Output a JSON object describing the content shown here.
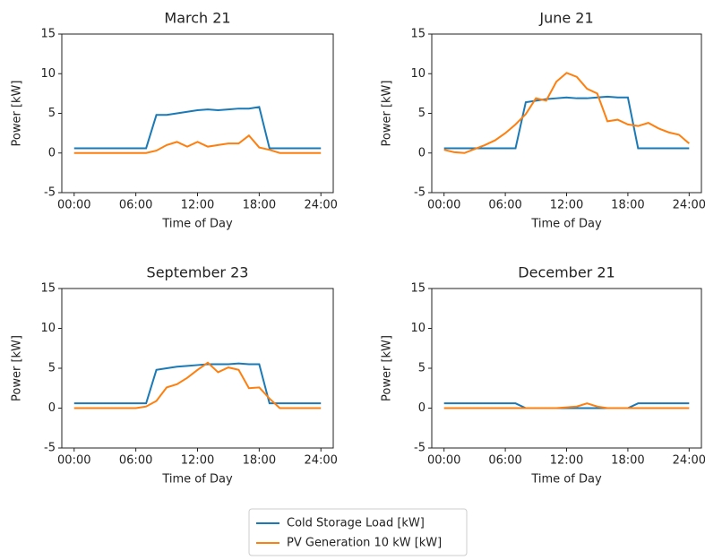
{
  "chart_data": [
    {
      "type": "line",
      "title": "March 21",
      "xlabel": "Time of Day",
      "ylabel": "Power [kW]",
      "x": [
        0,
        1,
        2,
        3,
        4,
        5,
        6,
        7,
        8,
        9,
        10,
        11,
        12,
        13,
        14,
        15,
        16,
        17,
        18,
        19,
        20,
        21,
        22,
        23,
        24
      ],
      "xlim": [
        -1.2,
        25.2
      ],
      "ylim": [
        -5,
        15
      ],
      "xticks": [
        {
          "value": 0,
          "label": "00:00"
        },
        {
          "value": 6,
          "label": "06:00"
        },
        {
          "value": 12,
          "label": "12:00"
        },
        {
          "value": 18,
          "label": "18:00"
        },
        {
          "value": 24,
          "label": "24:00"
        }
      ],
      "yticks": [
        -5,
        0,
        5,
        10,
        15
      ],
      "series": [
        {
          "name": "Cold Storage  Load [kW]",
          "color": "#1a7ab8",
          "values": [
            0.6,
            0.6,
            0.6,
            0.6,
            0.6,
            0.6,
            0.6,
            0.6,
            4.8,
            4.8,
            5.0,
            5.2,
            5.4,
            5.5,
            5.4,
            5.5,
            5.6,
            5.6,
            5.8,
            0.6,
            0.6,
            0.6,
            0.6,
            0.6,
            0.6
          ]
        },
        {
          "name": "PV Generation 10 kW [kW]",
          "color": "#ff7f0e",
          "values": [
            0,
            0,
            0,
            0,
            0,
            0,
            0,
            0,
            0.3,
            1.0,
            1.4,
            0.8,
            1.4,
            0.8,
            1.0,
            1.2,
            1.2,
            2.2,
            0.7,
            0.4,
            0,
            0,
            0,
            0,
            0
          ]
        }
      ]
    },
    {
      "type": "line",
      "title": "June 21",
      "xlabel": "Time of Day",
      "ylabel": "Power [kW]",
      "x": [
        0,
        1,
        2,
        3,
        4,
        5,
        6,
        7,
        8,
        9,
        10,
        11,
        12,
        13,
        14,
        15,
        16,
        17,
        18,
        19,
        20,
        21,
        22,
        23,
        24
      ],
      "xlim": [
        -1.2,
        25.2
      ],
      "ylim": [
        -5,
        15
      ],
      "xticks": [
        {
          "value": 0,
          "label": "00:00"
        },
        {
          "value": 6,
          "label": "06:00"
        },
        {
          "value": 12,
          "label": "12:00"
        },
        {
          "value": 18,
          "label": "18:00"
        },
        {
          "value": 24,
          "label": "24:00"
        }
      ],
      "yticks": [
        -5,
        0,
        5,
        10,
        15
      ],
      "series": [
        {
          "name": "Cold Storage  Load [kW]",
          "color": "#1a7ab8",
          "values": [
            0.6,
            0.6,
            0.6,
            0.6,
            0.6,
            0.6,
            0.6,
            0.6,
            6.4,
            6.6,
            6.8,
            6.9,
            7.0,
            6.9,
            6.9,
            7.0,
            7.1,
            7.0,
            7.0,
            0.6,
            0.6,
            0.6,
            0.6,
            0.6,
            0.6
          ]
        },
        {
          "name": "PV Generation 10 kW [kW]",
          "color": "#ff7f0e",
          "values": [
            0.4,
            0.1,
            0.0,
            0.5,
            1.0,
            1.6,
            2.5,
            3.6,
            4.9,
            6.9,
            6.6,
            9.0,
            10.1,
            9.6,
            8.1,
            7.5,
            4.0,
            4.2,
            3.6,
            3.4,
            3.8,
            3.1,
            2.6,
            2.3,
            1.2
          ]
        }
      ]
    },
    {
      "type": "line",
      "title": "September 23",
      "xlabel": "Time of Day",
      "ylabel": "Power [kW]",
      "x": [
        0,
        1,
        2,
        3,
        4,
        5,
        6,
        7,
        8,
        9,
        10,
        11,
        12,
        13,
        14,
        15,
        16,
        17,
        18,
        19,
        20,
        21,
        22,
        23,
        24
      ],
      "xlim": [
        -1.2,
        25.2
      ],
      "ylim": [
        -5,
        15
      ],
      "xticks": [
        {
          "value": 0,
          "label": "00:00"
        },
        {
          "value": 6,
          "label": "06:00"
        },
        {
          "value": 12,
          "label": "12:00"
        },
        {
          "value": 18,
          "label": "18:00"
        },
        {
          "value": 24,
          "label": "24:00"
        }
      ],
      "yticks": [
        -5,
        0,
        5,
        10,
        15
      ],
      "series": [
        {
          "name": "Cold Storage  Load [kW]",
          "color": "#1a7ab8",
          "values": [
            0.6,
            0.6,
            0.6,
            0.6,
            0.6,
            0.6,
            0.6,
            0.6,
            4.8,
            5.0,
            5.2,
            5.3,
            5.4,
            5.5,
            5.5,
            5.5,
            5.6,
            5.5,
            5.5,
            0.6,
            0.6,
            0.6,
            0.6,
            0.6,
            0.6
          ]
        },
        {
          "name": "PV Generation 10 kW [kW]",
          "color": "#ff7f0e",
          "values": [
            0,
            0,
            0,
            0,
            0,
            0,
            0,
            0.2,
            0.9,
            2.6,
            3.0,
            3.8,
            4.8,
            5.7,
            4.5,
            5.1,
            4.8,
            2.5,
            2.6,
            1.2,
            0,
            0,
            0,
            0,
            0
          ]
        }
      ]
    },
    {
      "type": "line",
      "title": "December 21",
      "xlabel": "Time of Day",
      "ylabel": "Power [kW]",
      "x": [
        0,
        1,
        2,
        3,
        4,
        5,
        6,
        7,
        8,
        9,
        10,
        11,
        12,
        13,
        14,
        15,
        16,
        17,
        18,
        19,
        20,
        21,
        22,
        23,
        24
      ],
      "xlim": [
        -1.2,
        25.2
      ],
      "ylim": [
        -5,
        15
      ],
      "xticks": [
        {
          "value": 0,
          "label": "00:00"
        },
        {
          "value": 6,
          "label": "06:00"
        },
        {
          "value": 12,
          "label": "12:00"
        },
        {
          "value": 18,
          "label": "18:00"
        },
        {
          "value": 24,
          "label": "24:00"
        }
      ],
      "yticks": [
        -5,
        0,
        5,
        10,
        15
      ],
      "series": [
        {
          "name": "Cold Storage  Load [kW]",
          "color": "#1a7ab8",
          "values": [
            0.6,
            0.6,
            0.6,
            0.6,
            0.6,
            0.6,
            0.6,
            0.6,
            0,
            0,
            0,
            0,
            0,
            0,
            0,
            0,
            0,
            0,
            0,
            0.6,
            0.6,
            0.6,
            0.6,
            0.6,
            0.6
          ]
        },
        {
          "name": "PV Generation 10 kW [kW]",
          "color": "#ff7f0e",
          "values": [
            0,
            0,
            0,
            0,
            0,
            0,
            0,
            0,
            0,
            0,
            0,
            0,
            0.1,
            0.2,
            0.6,
            0.2,
            0,
            0,
            0,
            0,
            0,
            0,
            0,
            0,
            0
          ]
        }
      ]
    }
  ]
}
